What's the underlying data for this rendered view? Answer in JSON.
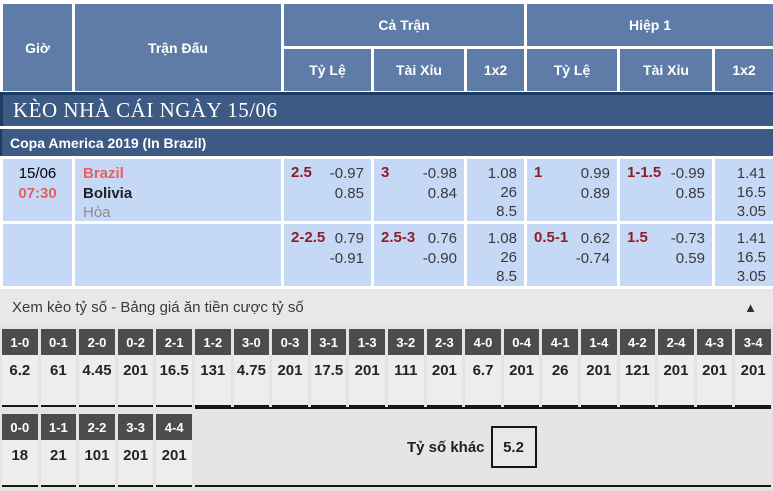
{
  "colors": {
    "header_blue": "#5e7ca7",
    "banner_blue": "#3c5a84",
    "banner_border": "#1e3c63",
    "row_blue": "#c5d9f7",
    "handicap_maroon": "#8e1d22",
    "team_red": "#e8605c",
    "score_header_gray": "#4c4c4c",
    "section_gray": "#e4e3e1"
  },
  "header": {
    "col_time": "Giờ",
    "col_match": "Trận Đấu",
    "group_full": "Cả Trận",
    "group_half": "Hiệp 1",
    "sub_handicap": "Tỷ Lệ",
    "sub_over_under": "Tài Xỉu",
    "sub_1x2": "1x2"
  },
  "banner": {
    "title": "KÈO NHÀ CÁI NGÀY 15/06"
  },
  "league": {
    "name": "Copa America 2019 (In Brazil)"
  },
  "match": {
    "date": "15/06",
    "time": "07:30",
    "home": "Brazil",
    "away": "Bolivia",
    "draw_label": "Hòa",
    "rows": [
      {
        "ft_hdp": "2.5",
        "ft_hdp_odds": [
          "-0.97",
          "0.85"
        ],
        "ft_ou": "3",
        "ft_ou_odds": [
          "-0.98",
          "0.84"
        ],
        "ft_1x2": [
          "1.08",
          "26",
          "8.5"
        ],
        "h1_hdp": "1",
        "h1_hdp_odds": [
          "0.99",
          "0.89"
        ],
        "h1_ou": "1-1.5",
        "h1_ou_odds": [
          "-0.99",
          "0.85"
        ],
        "h1_1x2": [
          "1.41",
          "16.5",
          "3.05"
        ]
      },
      {
        "ft_hdp": "2-2.5",
        "ft_hdp_odds": [
          "0.79",
          "-0.91"
        ],
        "ft_ou": "2.5-3",
        "ft_ou_odds": [
          "0.76",
          "-0.90"
        ],
        "ft_1x2": [
          "1.08",
          "26",
          "8.5"
        ],
        "h1_hdp": "0.5-1",
        "h1_hdp_odds": [
          "0.62",
          "-0.74"
        ],
        "h1_ou": "1.5",
        "h1_ou_odds": [
          "-0.73",
          "0.59"
        ],
        "h1_1x2": [
          "1.41",
          "16.5",
          "3.05"
        ]
      }
    ]
  },
  "score_section": {
    "toggle_label": "Xem kèo tỷ số - Bảng giá ăn tiền cược tỷ số",
    "collapse_icon": "▲",
    "row1": [
      {
        "score": "1-0",
        "odds": "6.2"
      },
      {
        "score": "0-1",
        "odds": "61"
      },
      {
        "score": "2-0",
        "odds": "4.45"
      },
      {
        "score": "0-2",
        "odds": "201"
      },
      {
        "score": "2-1",
        "odds": "16.5"
      },
      {
        "score": "1-2",
        "odds": "131"
      },
      {
        "score": "3-0",
        "odds": "4.75"
      },
      {
        "score": "0-3",
        "odds": "201"
      },
      {
        "score": "3-1",
        "odds": "17.5"
      },
      {
        "score": "1-3",
        "odds": "201"
      },
      {
        "score": "3-2",
        "odds": "111"
      },
      {
        "score": "2-3",
        "odds": "201"
      },
      {
        "score": "4-0",
        "odds": "6.7"
      },
      {
        "score": "0-4",
        "odds": "201"
      },
      {
        "score": "4-1",
        "odds": "26"
      },
      {
        "score": "1-4",
        "odds": "201"
      },
      {
        "score": "4-2",
        "odds": "121"
      },
      {
        "score": "2-4",
        "odds": "201"
      },
      {
        "score": "4-3",
        "odds": "201"
      },
      {
        "score": "3-4",
        "odds": "201"
      }
    ],
    "row2": [
      {
        "score": "0-0",
        "odds": "18"
      },
      {
        "score": "1-1",
        "odds": "21"
      },
      {
        "score": "2-2",
        "odds": "101"
      },
      {
        "score": "3-3",
        "odds": "201"
      },
      {
        "score": "4-4",
        "odds": "201"
      }
    ],
    "other_label": "Tỷ số khác",
    "other_odds": "5.2"
  }
}
